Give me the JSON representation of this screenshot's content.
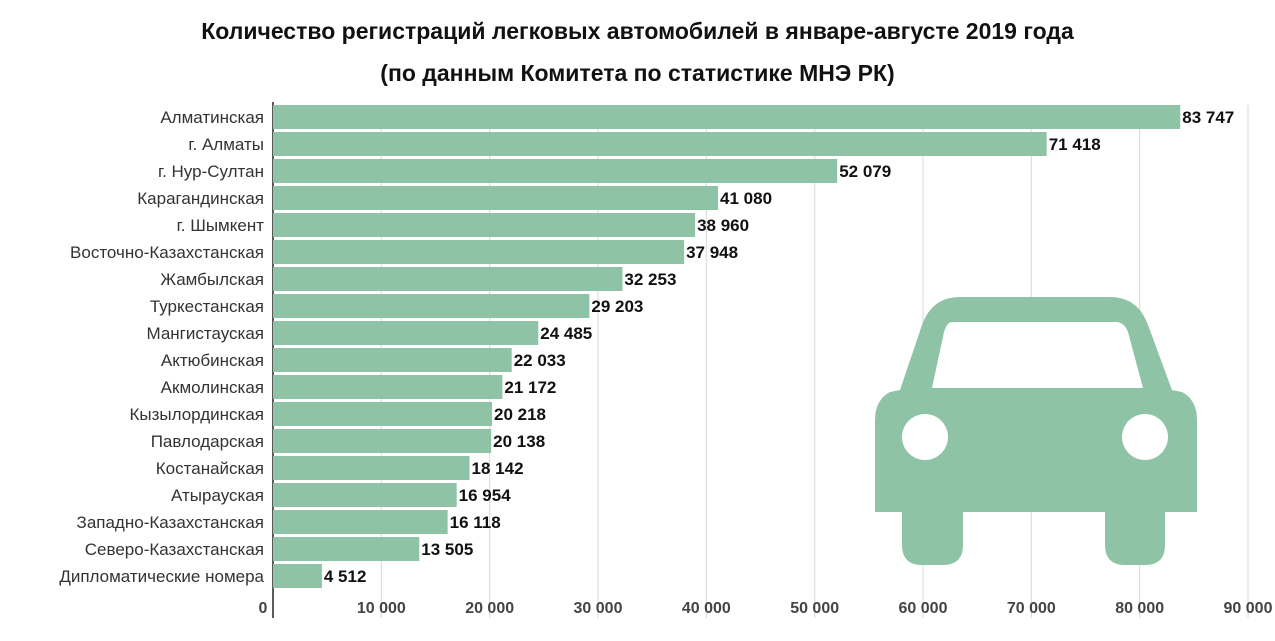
{
  "chart_data": {
    "type": "bar",
    "orientation": "horizontal",
    "title": "Количество регистраций легковых автомобилей в январе-августе 2019 года",
    "subtitle": "(по данным Комитета по статистике МНЭ РК)",
    "xlim": [
      0,
      90000
    ],
    "grid": true,
    "categories": [
      "Алматинская",
      "г. Алматы",
      "г. Нур-Султан",
      "Карагандинская",
      "г. Шымкент",
      "Восточно-Казахстанская",
      "Жамбылская",
      "Туркестанская",
      "Мангистауская",
      "Актюбинская",
      "Акмолинская",
      "Кызылординская",
      "Павлодарская",
      "Костанайская",
      "Атырауская",
      "Западно-Казахстанская",
      "Северо-Казахстанская",
      "Дипломатические номера"
    ],
    "values": [
      83747,
      71418,
      52079,
      41080,
      38960,
      37948,
      32253,
      29203,
      24485,
      22033,
      21172,
      20218,
      20138,
      18142,
      16954,
      16118,
      13505,
      4512
    ],
    "value_labels": [
      "83 747",
      "71 418",
      "52 079",
      "41 080",
      "38 960",
      "37 948",
      "32 253",
      "29 203",
      "24 485",
      "22 033",
      "21 172",
      "20 218",
      "20 138",
      "18 142",
      "16 954",
      "16 118",
      "13 505",
      "4 512"
    ],
    "ticks": [
      0,
      10000,
      20000,
      30000,
      40000,
      50000,
      60000,
      70000,
      80000,
      90000
    ],
    "tick_labels": [
      "0",
      "10 000",
      "20 000",
      "30 000",
      "40 000",
      "50 000",
      "60 000",
      "70 000",
      "80 000",
      "90 000"
    ],
    "bar_color": "#8fc3a5",
    "grid_color": "#d9d9d9",
    "decoration_icon": "car-icon"
  }
}
